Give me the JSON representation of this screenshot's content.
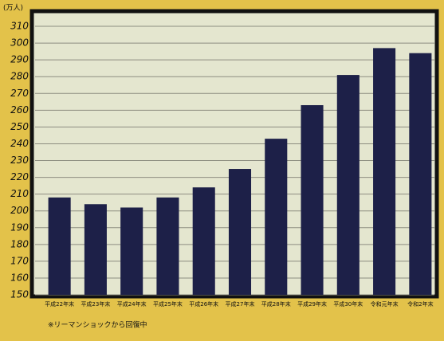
{
  "chart_data": {
    "type": "bar",
    "unit": "(万人)",
    "note": "※リーマンショックから回復中",
    "categories": [
      "平成22年末",
      "平成23年末",
      "平成24年末",
      "平成25年末",
      "平成26年末",
      "平成27年末",
      "平成28年末",
      "平成29年末",
      "平成30年末",
      "令和元年末",
      "令和2年末"
    ],
    "values": [
      208,
      204,
      202,
      208,
      214,
      225,
      243,
      263,
      281,
      297,
      294
    ],
    "color": "#1d2048",
    "ylim": [
      150,
      310
    ],
    "yticks": [
      150,
      160,
      170,
      180,
      190,
      200,
      210,
      220,
      230,
      240,
      250,
      260,
      270,
      280,
      290,
      300,
      310
    ],
    "grid": true
  }
}
